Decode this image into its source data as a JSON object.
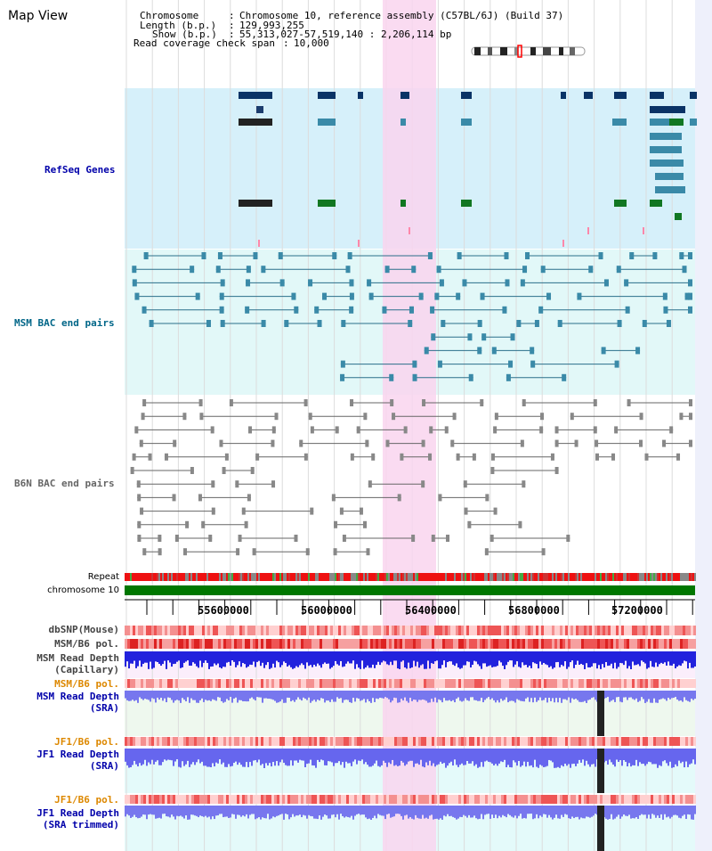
{
  "view_title": "Map View",
  "info": {
    "chromosome_label": "Chromosome",
    "chromosome_value": "Chromosome 10, reference assembly (C57BL/6J) (Build 37)",
    "length_label": "Length (b.p.)",
    "length_value": "129,993,255",
    "show_label": "Show (b.p.)",
    "show_value": "55,313,027-57,519,140 : 2,206,114 bp",
    "span_label": "Read coverage check span",
    "span_value": "10,000"
  },
  "tracks": {
    "refseq": "RefSeq Genes",
    "msm_bac": "MSM BAC end pairs",
    "b6n_bac": "B6N BAC end pairs",
    "repeat": "Repeat",
    "chromosome": "chromosome 10",
    "dbsnp": "dbSNP(Mouse)",
    "msm_pol_1": "MSM/B6 pol.",
    "msm_cap_depth": "MSM Read Depth\n(Capillary)",
    "msm_pol_2": "MSM/B6 pol.",
    "msm_sra_depth": "MSM Read Depth\n(SRA)",
    "jf1_pol_1": "JF1/B6 pol.",
    "jf1_sra_depth": "JF1 Read Depth\n(SRA)",
    "jf1_pol_2": "JF1/B6 pol.",
    "jf1_trim_depth": "JF1 Read Depth\n(SRA trimmed)"
  },
  "scale_ticks": [
    "55600000",
    "56000000",
    "56400000",
    "56800000",
    "57200000"
  ],
  "colors": {
    "refseq_bg": "#d6f0fa",
    "msm_bg": "#e2f8f8",
    "b6n_bg": "#ffffff",
    "highlight": "#f9d5ef",
    "chromosome_bar": "#007700",
    "label_blue": "#0000aa",
    "label_teal": "#006688",
    "label_orange": "#dd8800"
  }
}
